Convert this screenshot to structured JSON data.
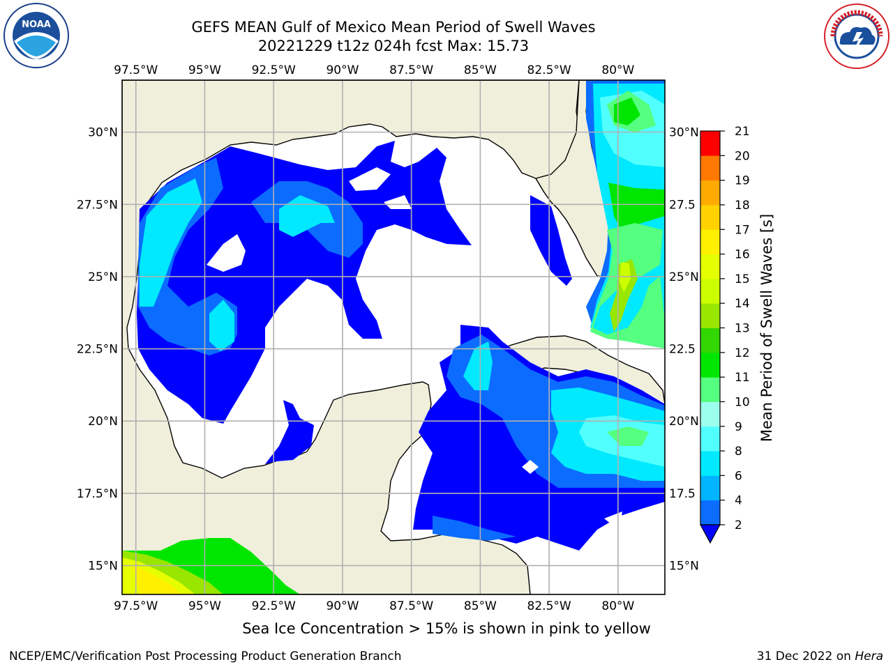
{
  "title": {
    "line1": "GEFS MEAN Gulf of Mexico Mean Period of Swell Waves",
    "line2": "20221229 t12z 024h fcst   Max: 15.73"
  },
  "logos": {
    "left": "noaa-logo",
    "left_text": "NOAA",
    "right": "national-weather-service-logo",
    "right_text": "NATIONAL WEATHER SERVICE"
  },
  "map": {
    "lon_labels": [
      "97.5°W",
      "95°W",
      "92.5°W",
      "90°W",
      "87.5°W",
      "85°W",
      "82.5°W",
      "80°W"
    ],
    "lon_values": [
      -97.5,
      -95,
      -92.5,
      -90,
      -87.5,
      -85,
      -82.5,
      -80
    ],
    "lat_labels_left": [
      "30°N",
      "27.5°N",
      "25°N",
      "22.5°N",
      "20°N",
      "17.5°N",
      "15°N"
    ],
    "lat_labels_right": [
      "30°N",
      "27.5",
      "25°N",
      "22.5",
      "20°N",
      "17.5",
      "15°N"
    ],
    "lat_values": [
      30,
      27.5,
      25,
      22.5,
      20,
      17.5,
      15
    ],
    "extent": {
      "lon_min": -98,
      "lon_max": -78.3,
      "lat_min": 14,
      "lat_max": 31.8
    }
  },
  "colorbar": {
    "label": "Mean Period of Swell Waves [s]",
    "ticks": [
      "2",
      "4",
      "6",
      "8",
      "9",
      "10",
      "11",
      "12",
      "13",
      "14",
      "15",
      "16",
      "17",
      "18",
      "19",
      "20",
      "21"
    ],
    "colors": [
      "#0b6cff",
      "#00b4ff",
      "#00e9ff",
      "#52ffff",
      "#9cffee",
      "#55ff7f",
      "#00e600",
      "#32d600",
      "#99e600",
      "#ccff00",
      "#e6ff00",
      "#fff000",
      "#ffd200",
      "#ffaa00",
      "#ff7800",
      "#ff3c00",
      "#ff0000"
    ],
    "under_color": "#0000ff"
  },
  "colors": {
    "land": "#efefdc",
    "ocean_low": "#0000ff",
    "grid": "#b0b0b0"
  },
  "footer": {
    "note": "Sea Ice Concentration > 15% is shown in pink to yellow",
    "left": "NCEP/EMC/Verification Post Processing Product Generation Branch",
    "right_date": "31 Dec 2022 on ",
    "right_host": "Hera"
  }
}
